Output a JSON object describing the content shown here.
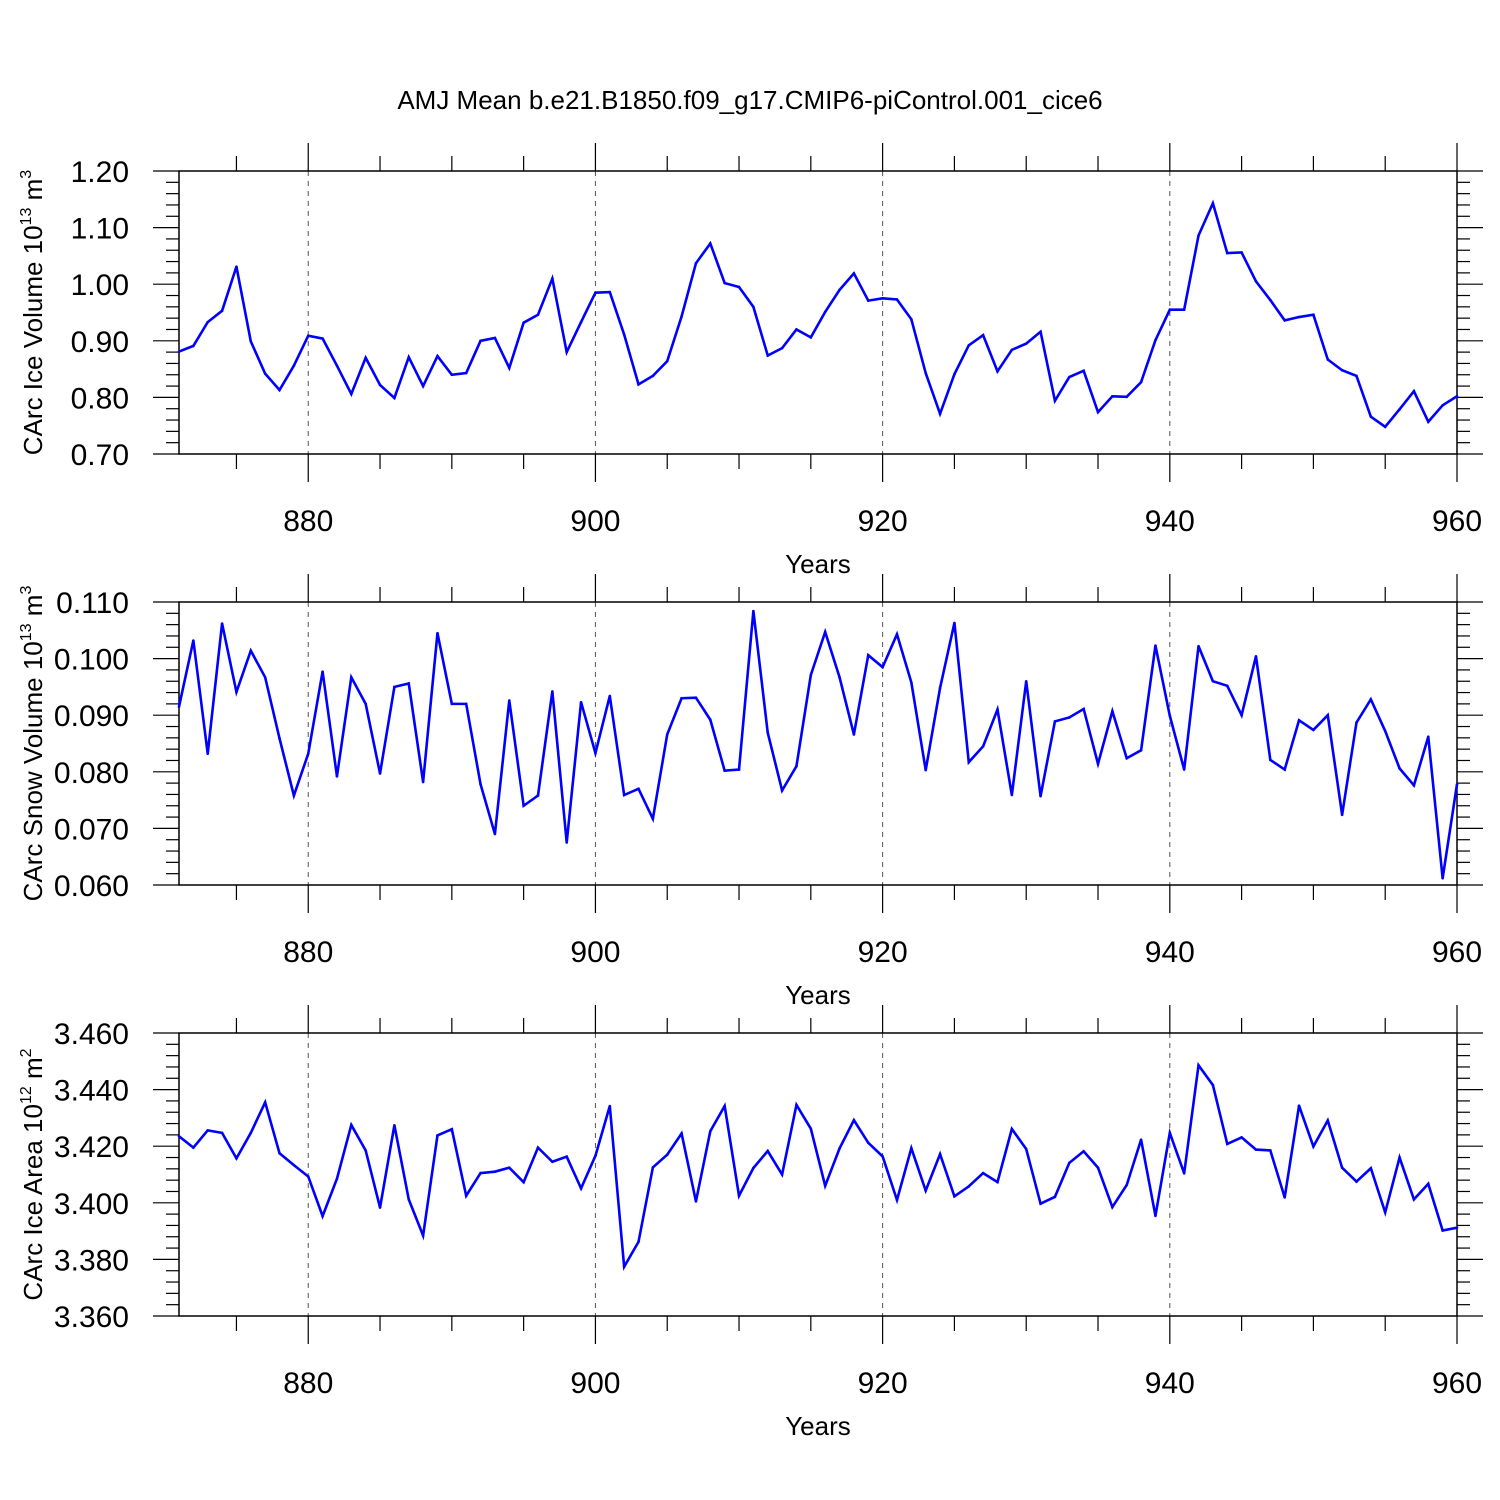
{
  "figure": {
    "title": "AMJ Mean b.e21.B1850.f09_g17.CMIP6-piControl.001_cice6"
  },
  "chart_data": [
    {
      "type": "line",
      "title": "",
      "xlabel": "Years",
      "ylabel": "CArc Ice Volume 10^13 m^3",
      "ylabel_parts": {
        "main": "CArc Ice Volume 10",
        "exp1": "13",
        "unit": " m",
        "exp2": "3"
      },
      "xlim": [
        871,
        960
      ],
      "ylim": [
        0.7,
        1.2
      ],
      "xticks": [
        880,
        900,
        920,
        940,
        960
      ],
      "yticks": [
        0.7,
        0.8,
        0.9,
        1.0,
        1.1,
        1.2
      ],
      "ytick_labels": [
        "0.70",
        "0.80",
        "0.90",
        "1.00",
        "1.10",
        "1.20"
      ],
      "grid": "dashed vertical at x ticks",
      "color": "#0000ff",
      "x_start": 871,
      "values": [
        0.881,
        0.891,
        0.933,
        0.953,
        1.031,
        0.899,
        0.842,
        0.813,
        0.856,
        0.909,
        0.904,
        0.856,
        0.806,
        0.87,
        0.822,
        0.799,
        0.871,
        0.82,
        0.873,
        0.84,
        0.843,
        0.9,
        0.905,
        0.852,
        0.932,
        0.946,
        1.01,
        0.88,
        0.933,
        0.985,
        0.986,
        0.911,
        0.823,
        0.838,
        0.864,
        0.943,
        1.037,
        1.072,
        1.002,
        0.995,
        0.96,
        0.874,
        0.887,
        0.92,
        0.906,
        0.951,
        0.99,
        1.019,
        0.971,
        0.975,
        0.973,
        0.938,
        0.843,
        0.771,
        0.841,
        0.892,
        0.91,
        0.846,
        0.884,
        0.895,
        0.916,
        0.794,
        0.836,
        0.847,
        0.774,
        0.802,
        0.801,
        0.827,
        0.901,
        0.955,
        0.955,
        1.086,
        1.143,
        1.055,
        1.056,
        1.005,
        0.972,
        0.936,
        0.942,
        0.946,
        0.867,
        0.848,
        0.838,
        0.766,
        0.748,
        0.779,
        0.811,
        0.757,
        0.786,
        0.802
      ]
    },
    {
      "type": "line",
      "title": "",
      "xlabel": "Years",
      "ylabel": "CArc Snow Volume 10^13 m^3",
      "ylabel_parts": {
        "main": "CArc Snow Volume 10",
        "exp1": "13",
        "unit": " m",
        "exp2": "3"
      },
      "xlim": [
        871,
        960
      ],
      "ylim": [
        0.06,
        0.11
      ],
      "xticks": [
        880,
        900,
        920,
        940,
        960
      ],
      "yticks": [
        0.06,
        0.07,
        0.08,
        0.09,
        0.1,
        0.11
      ],
      "ytick_labels": [
        "0.060",
        "0.070",
        "0.080",
        "0.090",
        "0.100",
        "0.110"
      ],
      "grid": "dashed vertical at x ticks",
      "color": "#0000ff",
      "x_start": 871,
      "values": [
        0.0915,
        0.1032,
        0.0832,
        0.1062,
        0.0941,
        0.1014,
        0.0967,
        0.0859,
        0.0758,
        0.0832,
        0.0977,
        0.0792,
        0.0967,
        0.092,
        0.0797,
        0.095,
        0.0956,
        0.0782,
        0.1045,
        0.092,
        0.092,
        0.0778,
        0.069,
        0.0926,
        0.074,
        0.0758,
        0.0942,
        0.0675,
        0.0923,
        0.0833,
        0.0934,
        0.0759,
        0.077,
        0.0717,
        0.0866,
        0.093,
        0.0931,
        0.0892,
        0.0802,
        0.0804,
        0.1084,
        0.0869,
        0.0767,
        0.081,
        0.0971,
        0.1047,
        0.0967,
        0.0866,
        0.1006,
        0.0985,
        0.1043,
        0.0958,
        0.0803,
        0.0948,
        0.1063,
        0.0817,
        0.0845,
        0.091,
        0.0759,
        0.096,
        0.0757,
        0.0889,
        0.0896,
        0.0911,
        0.0814,
        0.0907,
        0.0824,
        0.0838,
        0.1023,
        0.0899,
        0.0804,
        0.1022,
        0.096,
        0.0952,
        0.09,
        0.1004,
        0.0821,
        0.0804,
        0.0891,
        0.0874,
        0.09,
        0.0724,
        0.0887,
        0.0928,
        0.0872,
        0.0806,
        0.0776,
        0.0862,
        0.0612,
        0.0778
      ]
    },
    {
      "type": "line",
      "title": "",
      "xlabel": "Years",
      "ylabel": "CArc Ice Area 10^12 m^2",
      "ylabel_parts": {
        "main": "CArc Ice Area 10",
        "exp1": "12",
        "unit": " m",
        "exp2": "2"
      },
      "xlim": [
        871,
        960
      ],
      "ylim": [
        3.36,
        3.46
      ],
      "xticks": [
        880,
        900,
        920,
        940,
        960
      ],
      "yticks": [
        3.36,
        3.38,
        3.4,
        3.42,
        3.44,
        3.46
      ],
      "ytick_labels": [
        "3.360",
        "3.380",
        "3.400",
        "3.420",
        "3.440",
        "3.460"
      ],
      "grid": "dashed vertical at x ticks",
      "color": "#0000ff",
      "x_start": 871,
      "values": [
        3.4235,
        3.4195,
        3.4256,
        3.4247,
        3.4157,
        3.4247,
        3.4355,
        3.4175,
        3.4133,
        3.4093,
        3.3953,
        3.4085,
        3.4275,
        3.4185,
        3.3983,
        3.4274,
        3.4012,
        3.3884,
        3.4238,
        3.426,
        3.4025,
        3.4105,
        3.411,
        3.4124,
        3.4073,
        3.4195,
        3.4145,
        3.4163,
        3.4051,
        3.4166,
        3.4342,
        3.3774,
        3.3862,
        3.4125,
        3.417,
        3.4245,
        3.4005,
        3.4253,
        3.4342,
        3.4025,
        3.4123,
        3.4183,
        3.41,
        3.4346,
        3.4262,
        3.406,
        3.4192,
        3.4292,
        3.4212,
        3.4164,
        3.401,
        3.4193,
        3.4043,
        3.4172,
        3.4023,
        3.4058,
        3.4105,
        3.4073,
        3.4261,
        3.419,
        3.3997,
        3.4021,
        3.4141,
        3.4182,
        3.4124,
        3.3985,
        3.4063,
        3.4223,
        3.3954,
        3.4247,
        3.4104,
        3.4486,
        3.4416,
        3.4208,
        3.4231,
        3.4188,
        3.4185,
        3.4019,
        3.4343,
        3.4199,
        3.4291,
        3.4124,
        3.4075,
        3.4122,
        3.3966,
        3.416,
        3.4012,
        3.4067,
        3.3902,
        3.3912
      ]
    }
  ]
}
